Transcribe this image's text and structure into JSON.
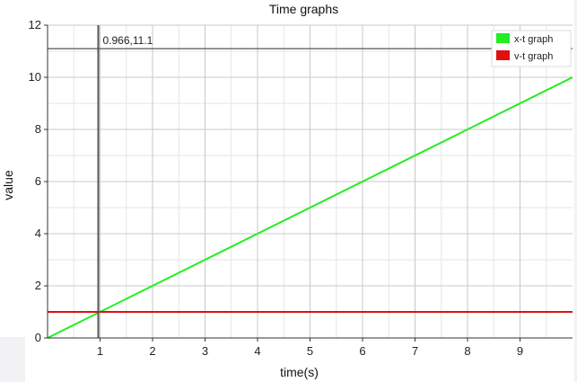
{
  "chart_data": {
    "type": "line",
    "title": "Time graphs",
    "xlabel": "time(s)",
    "ylabel": "value",
    "xlim": [
      0,
      10
    ],
    "ylim": [
      0,
      12
    ],
    "x_ticks": [
      1,
      2,
      3,
      4,
      5,
      6,
      7,
      8,
      9
    ],
    "y_ticks": [
      0,
      2,
      4,
      6,
      8,
      10,
      12
    ],
    "grid": true,
    "legend_position": "top-right",
    "series": [
      {
        "name": "x-t graph",
        "color": "#22ee22",
        "x": [
          0,
          10
        ],
        "y": [
          0,
          10
        ]
      },
      {
        "name": "v-t graph",
        "color": "#e01010",
        "x": [
          0,
          10
        ],
        "y": [
          1,
          1
        ]
      }
    ],
    "cursor": {
      "x": 0.966,
      "y": 11.1,
      "label": "0.966,11.1"
    }
  }
}
